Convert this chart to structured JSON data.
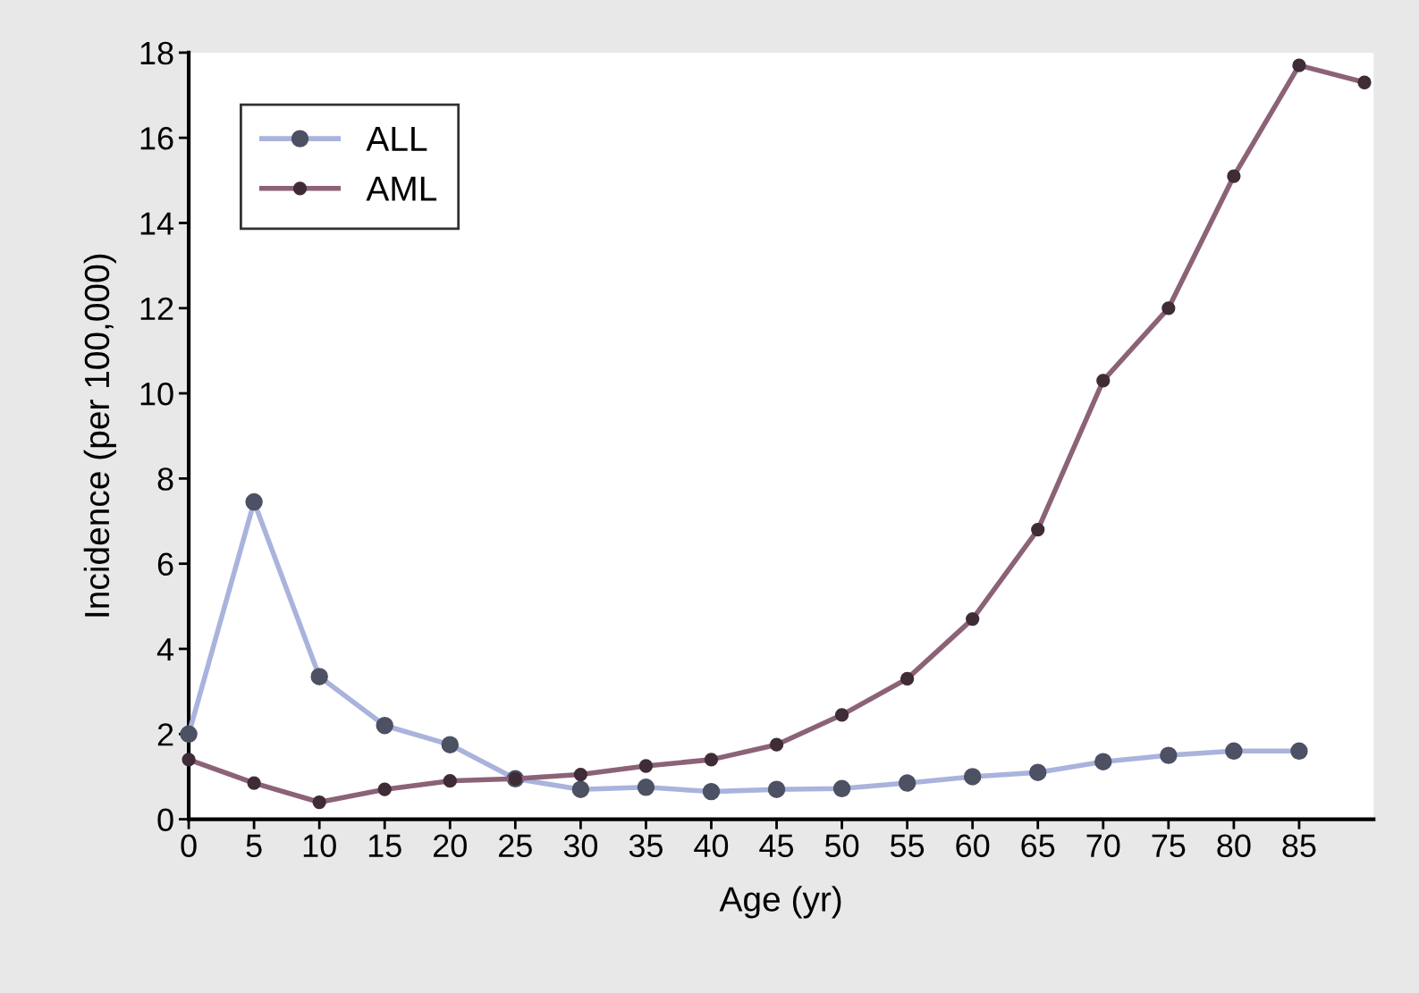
{
  "chart_data": {
    "type": "line",
    "xlabel": "Age (yr)",
    "ylabel": "Incidence (per 100,000)",
    "x": [
      0,
      5,
      10,
      15,
      20,
      25,
      30,
      35,
      40,
      45,
      50,
      55,
      60,
      65,
      70,
      75,
      80,
      85,
      90
    ],
    "series": [
      {
        "name": "ALL",
        "color": "#a9b3dc",
        "values": [
          2.0,
          7.45,
          3.35,
          2.2,
          1.75,
          0.95,
          0.7,
          0.75,
          0.65,
          0.7,
          0.72,
          0.85,
          1.0,
          1.1,
          1.35,
          1.5,
          1.6,
          1.6,
          null
        ]
      },
      {
        "name": "AML",
        "color": "#8c6277",
        "values": [
          1.4,
          0.85,
          0.4,
          0.7,
          0.9,
          0.95,
          1.05,
          1.25,
          1.4,
          1.75,
          2.45,
          3.3,
          4.7,
          6.8,
          10.3,
          12.0,
          15.1,
          17.7,
          17.3
        ]
      }
    ],
    "xlim": [
      0,
      90.7
    ],
    "xticks": [
      0,
      5,
      10,
      15,
      20,
      25,
      30,
      35,
      40,
      45,
      50,
      55,
      60,
      65,
      70,
      75,
      80,
      85
    ],
    "ylim": [
      0,
      18
    ],
    "yticks": [
      0,
      2,
      4,
      6,
      8,
      10,
      12,
      14,
      16,
      18
    ],
    "marker": "circle",
    "line_style": "solid",
    "grid": false,
    "legend": "top left"
  }
}
